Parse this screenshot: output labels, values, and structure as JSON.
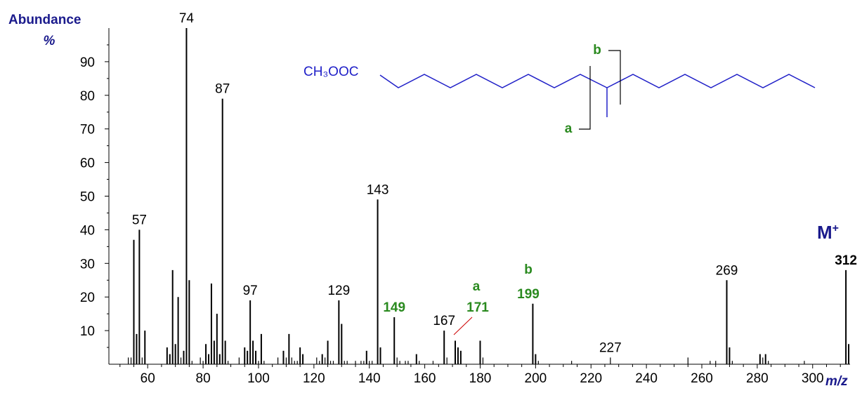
{
  "chart_data": {
    "type": "bar",
    "ylabel_line1": "Abundance",
    "ylabel_line2": "%",
    "xlabel": "m/z",
    "xlim": [
      46,
      313
    ],
    "ylim": [
      0,
      100
    ],
    "x_ticks": [
      60,
      80,
      100,
      120,
      140,
      160,
      180,
      200,
      220,
      240,
      260,
      280,
      300
    ],
    "y_ticks": [
      10,
      20,
      30,
      40,
      50,
      60,
      70,
      80,
      90
    ],
    "peaks": [
      {
        "x": 53,
        "y": 2
      },
      {
        "x": 54,
        "y": 2
      },
      {
        "x": 55,
        "y": 37
      },
      {
        "x": 56,
        "y": 9
      },
      {
        "x": 57,
        "y": 40
      },
      {
        "x": 58,
        "y": 2
      },
      {
        "x": 59,
        "y": 10
      },
      {
        "x": 67,
        "y": 5
      },
      {
        "x": 68,
        "y": 3
      },
      {
        "x": 69,
        "y": 28
      },
      {
        "x": 70,
        "y": 6
      },
      {
        "x": 71,
        "y": 20
      },
      {
        "x": 72,
        "y": 2
      },
      {
        "x": 73,
        "y": 4
      },
      {
        "x": 74,
        "y": 100
      },
      {
        "x": 75,
        "y": 25
      },
      {
        "x": 76,
        "y": 1
      },
      {
        "x": 79,
        "y": 2
      },
      {
        "x": 80,
        "y": 1
      },
      {
        "x": 81,
        "y": 6
      },
      {
        "x": 82,
        "y": 3
      },
      {
        "x": 83,
        "y": 24
      },
      {
        "x": 84,
        "y": 7
      },
      {
        "x": 85,
        "y": 15
      },
      {
        "x": 86,
        "y": 3
      },
      {
        "x": 87,
        "y": 79
      },
      {
        "x": 88,
        "y": 7
      },
      {
        "x": 89,
        "y": 1
      },
      {
        "x": 93,
        "y": 2
      },
      {
        "x": 95,
        "y": 5
      },
      {
        "x": 96,
        "y": 4
      },
      {
        "x": 97,
        "y": 19
      },
      {
        "x": 98,
        "y": 7
      },
      {
        "x": 99,
        "y": 4
      },
      {
        "x": 100,
        "y": 1
      },
      {
        "x": 101,
        "y": 9
      },
      {
        "x": 102,
        "y": 1
      },
      {
        "x": 107,
        "y": 2
      },
      {
        "x": 109,
        "y": 4
      },
      {
        "x": 110,
        "y": 2
      },
      {
        "x": 111,
        "y": 9
      },
      {
        "x": 112,
        "y": 2
      },
      {
        "x": 113,
        "y": 1
      },
      {
        "x": 114,
        "y": 1
      },
      {
        "x": 115,
        "y": 5
      },
      {
        "x": 116,
        "y": 3
      },
      {
        "x": 121,
        "y": 2
      },
      {
        "x": 122,
        "y": 1
      },
      {
        "x": 123,
        "y": 3
      },
      {
        "x": 124,
        "y": 2
      },
      {
        "x": 125,
        "y": 7
      },
      {
        "x": 126,
        "y": 1
      },
      {
        "x": 127,
        "y": 1
      },
      {
        "x": 129,
        "y": 19
      },
      {
        "x": 130,
        "y": 12
      },
      {
        "x": 131,
        "y": 1
      },
      {
        "x": 132,
        "y": 1
      },
      {
        "x": 135,
        "y": 1
      },
      {
        "x": 137,
        "y": 1
      },
      {
        "x": 138,
        "y": 1
      },
      {
        "x": 139,
        "y": 4
      },
      {
        "x": 140,
        "y": 1
      },
      {
        "x": 141,
        "y": 1
      },
      {
        "x": 143,
        "y": 49
      },
      {
        "x": 144,
        "y": 5
      },
      {
        "x": 149,
        "y": 14
      },
      {
        "x": 150,
        "y": 2
      },
      {
        "x": 151,
        "y": 1
      },
      {
        "x": 153,
        "y": 1
      },
      {
        "x": 154,
        "y": 1
      },
      {
        "x": 157,
        "y": 3
      },
      {
        "x": 158,
        "y": 1
      },
      {
        "x": 163,
        "y": 1
      },
      {
        "x": 167,
        "y": 10
      },
      {
        "x": 168,
        "y": 2
      },
      {
        "x": 171,
        "y": 7
      },
      {
        "x": 172,
        "y": 5
      },
      {
        "x": 173,
        "y": 4
      },
      {
        "x": 180,
        "y": 7
      },
      {
        "x": 181,
        "y": 2
      },
      {
        "x": 199,
        "y": 18
      },
      {
        "x": 200,
        "y": 3
      },
      {
        "x": 201,
        "y": 1
      },
      {
        "x": 213,
        "y": 1
      },
      {
        "x": 227,
        "y": 2
      },
      {
        "x": 255,
        "y": 2
      },
      {
        "x": 263,
        "y": 1
      },
      {
        "x": 265,
        "y": 1
      },
      {
        "x": 269,
        "y": 25
      },
      {
        "x": 270,
        "y": 5
      },
      {
        "x": 271,
        "y": 1
      },
      {
        "x": 281,
        "y": 3
      },
      {
        "x": 282,
        "y": 2
      },
      {
        "x": 283,
        "y": 3
      },
      {
        "x": 284,
        "y": 1
      },
      {
        "x": 297,
        "y": 1
      },
      {
        "x": 312,
        "y": 28
      },
      {
        "x": 313,
        "y": 6
      }
    ],
    "peak_labels": [
      {
        "x": 57,
        "text": "57",
        "style": "black"
      },
      {
        "x": 74,
        "text": "74",
        "style": "black"
      },
      {
        "x": 87,
        "text": "87",
        "style": "black"
      },
      {
        "x": 97,
        "text": "97",
        "style": "black"
      },
      {
        "x": 129,
        "text": "129",
        "style": "black"
      },
      {
        "x": 143,
        "text": "143",
        "style": "black"
      },
      {
        "x": 149,
        "text": "149",
        "style": "green"
      },
      {
        "x": 167,
        "text": "167",
        "style": "black"
      },
      {
        "x": 227,
        "text": "227",
        "style": "black"
      },
      {
        "x": 269,
        "text": "269",
        "style": "black"
      },
      {
        "x": 312,
        "text": "312",
        "style": "navy"
      }
    ],
    "annotations": {
      "a_label": "a",
      "a_value": "171",
      "b_label": "b",
      "b_value": "199",
      "molecular_ion": "M",
      "molecular_ion_sup": "+"
    },
    "structure": {
      "ester_group": "CH₃OOC",
      "cleavage_a": "a",
      "cleavage_b": "b"
    },
    "colors": {
      "bars": "#000000",
      "fragment_labels": "#2a8a1f",
      "axis_title": "#1a1a8c",
      "structure": "#2020c8",
      "leader_line": "#cc0000"
    }
  }
}
